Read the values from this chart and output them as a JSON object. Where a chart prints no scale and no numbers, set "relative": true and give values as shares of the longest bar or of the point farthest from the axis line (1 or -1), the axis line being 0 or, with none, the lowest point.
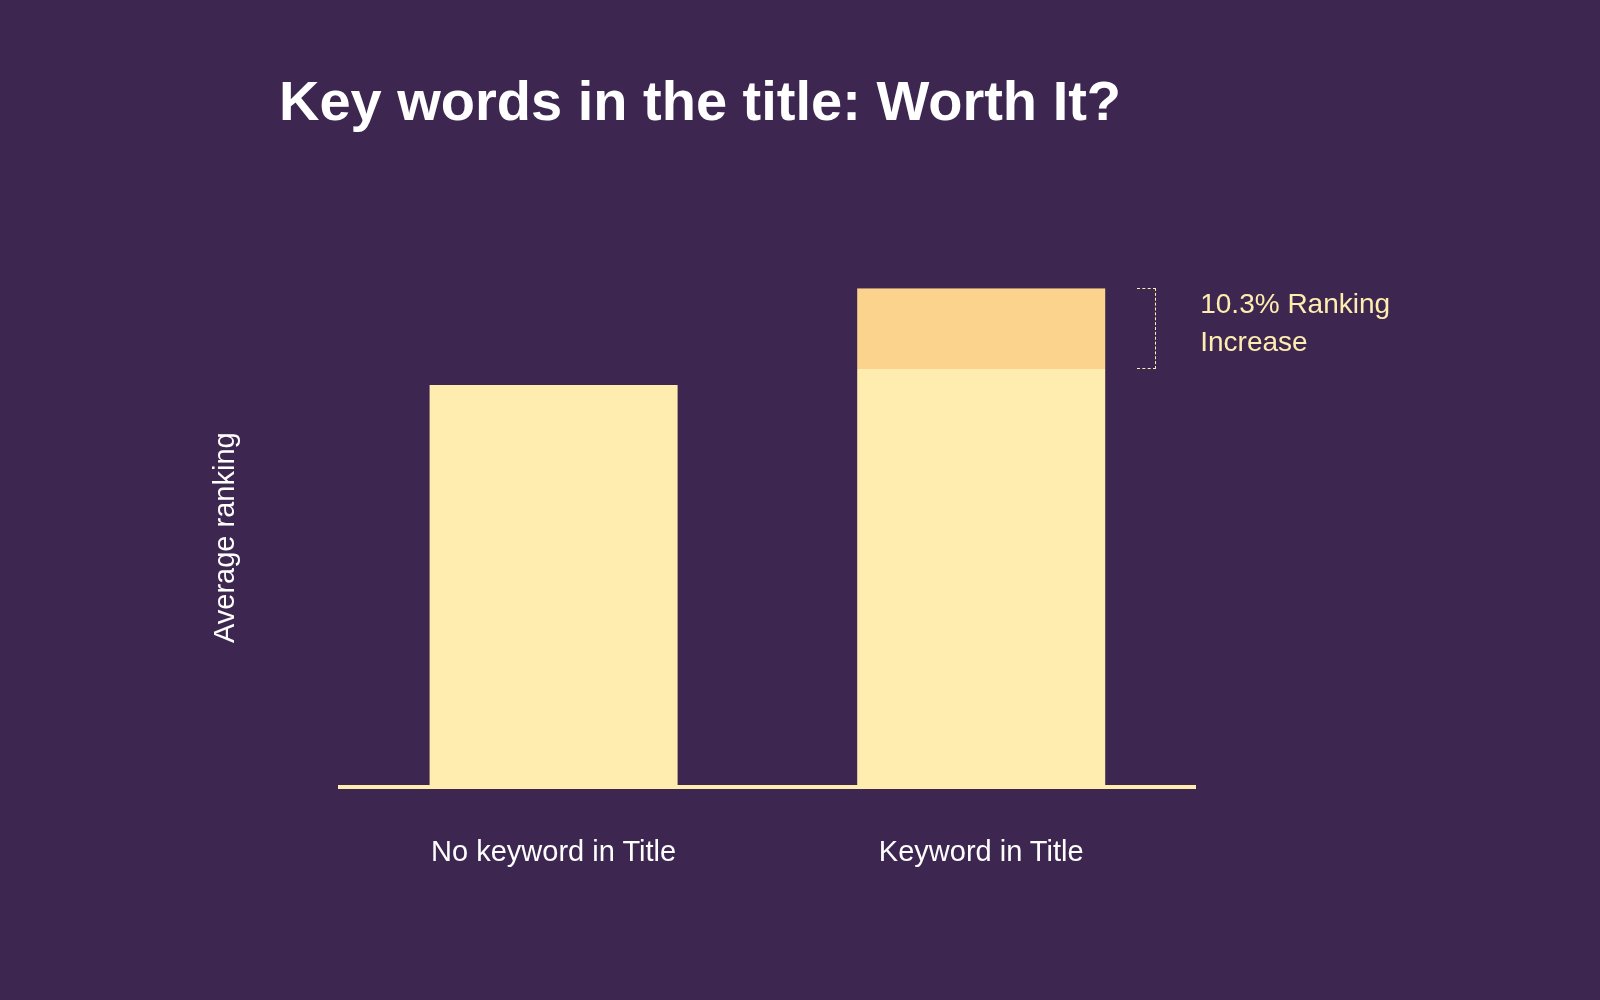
{
  "chart_data": {
    "type": "bar",
    "title": "Key words in the title: Worth It?",
    "ylabel": "Average ranking",
    "categories": [
      "No keyword in Title",
      "Keyword in Title"
    ],
    "relative": true,
    "stacked": true,
    "series": [
      {
        "color": "#ffedb0",
        "values": [
          0.806,
          0.838
        ]
      },
      {
        "color": "#fcd38c",
        "values": [
          0,
          0.162
        ]
      }
    ],
    "annotations": [
      "10.3% Ranking Increase"
    ],
    "grid": false,
    "legend": false
  }
}
